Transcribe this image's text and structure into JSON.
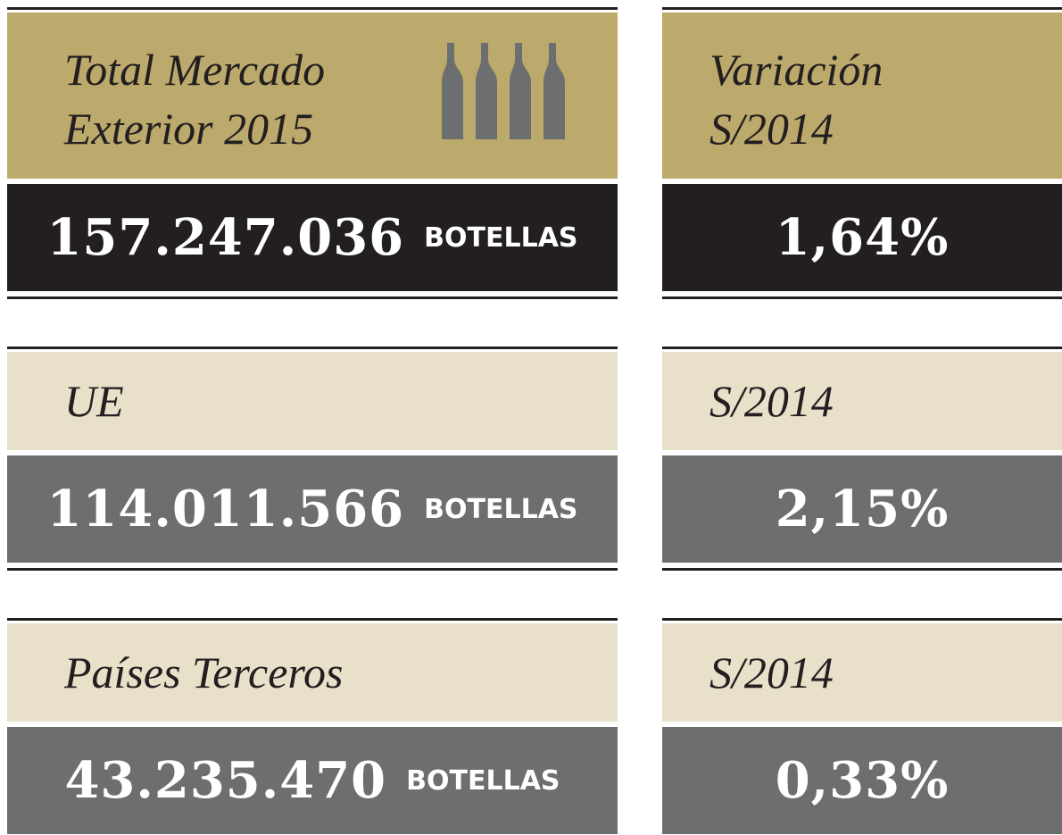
{
  "rows": [
    {
      "label": [
        "Total Mercado",
        "Exterior 2015"
      ],
      "value": "157.247.036",
      "unit": "BOTELLAS",
      "change_label": [
        "Variación",
        "S/2014"
      ],
      "change": "1,64%"
    },
    {
      "label": [
        "UE"
      ],
      "value": "114.011.566",
      "unit": "BOTELLAS",
      "change_label": [
        "S/2014"
      ],
      "change": "2,15%"
    },
    {
      "label": [
        "Países Terceros"
      ],
      "value": "43.235.470",
      "unit": "BOTELLAS",
      "change_label": [
        "S/2014"
      ],
      "change": "0,33%"
    }
  ]
}
